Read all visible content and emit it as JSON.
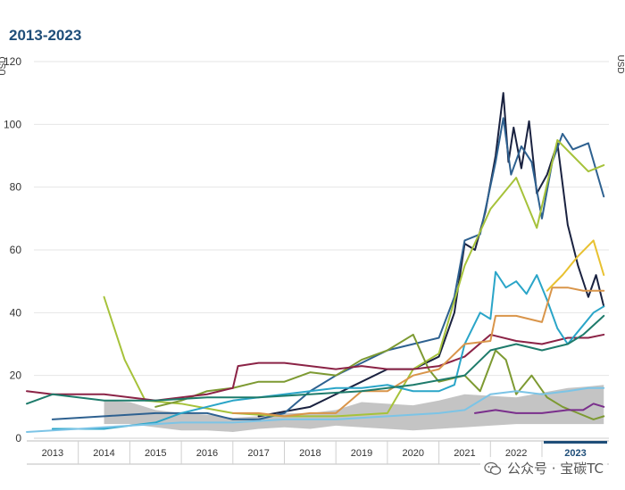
{
  "chart_data": {
    "type": "line",
    "title": "2013-2023",
    "ylabel_left": "USD",
    "ylabel_right": "USD",
    "ylim": [
      0,
      120
    ],
    "yticks": [
      0,
      20,
      40,
      60,
      80,
      100,
      120
    ],
    "xlim": [
      2012.5,
      2023.8
    ],
    "year_labels": [
      "2013",
      "2014",
      "2015",
      "2016",
      "2017",
      "2018",
      "2019",
      "2020",
      "2021",
      "2022",
      "2023"
    ],
    "highlight_year": "2023",
    "band": {
      "name": "range",
      "color": "#c4c4c4",
      "x": [
        2014.0,
        2014.5,
        2015.0,
        2015.5,
        2016.0,
        2016.5,
        2017.0,
        2017.5,
        2018.0,
        2018.5,
        2019.0,
        2019.5,
        2020.0,
        2020.5,
        2021.0,
        2021.5,
        2022.0,
        2022.5,
        2023.0,
        2023.4,
        2023.7
      ],
      "lower": [
        4.5,
        4.5,
        3.5,
        2.5,
        2.5,
        2.0,
        3.0,
        3.5,
        3.0,
        4.0,
        3.5,
        3.0,
        2.5,
        3.0,
        3.5,
        4.0,
        4.5,
        4.5,
        4.5,
        4.5,
        4.5
      ],
      "upper": [
        12.0,
        11.5,
        9.0,
        8.0,
        7.5,
        6.5,
        7.0,
        8.0,
        8.0,
        9.0,
        11.5,
        11.0,
        10.5,
        12.0,
        14.0,
        13.5,
        13.0,
        14.5,
        16.0,
        16.5,
        17.0
      ]
    },
    "series": [
      {
        "name": "navy",
        "color": "#1a2240",
        "x": [
          2017.0,
          2018.0,
          2019.0,
          2019.5,
          2020.0,
          2020.5,
          2020.8,
          2021.0,
          2021.2,
          2021.4,
          2021.6,
          2021.75,
          2021.85,
          2021.95,
          2022.1,
          2022.25,
          2022.4,
          2022.6,
          2022.8,
          2023.0,
          2023.2,
          2023.4,
          2023.55,
          2023.7
        ],
        "y": [
          7,
          10,
          18,
          22,
          22,
          26,
          40,
          62,
          60,
          72,
          90,
          110,
          88,
          99,
          86,
          101,
          78,
          84,
          94,
          68,
          55,
          45,
          52,
          42
        ]
      },
      {
        "name": "steel blue",
        "color": "#2e6190",
        "x": [
          2013.0,
          2014.0,
          2015.0,
          2016.0,
          2016.5,
          2017.0,
          2017.5,
          2018.0,
          2018.5,
          2019.0,
          2019.5,
          2020.0,
          2020.5,
          2020.8,
          2021.0,
          2021.3,
          2021.6,
          2021.75,
          2021.9,
          2022.1,
          2022.3,
          2022.5,
          2022.7,
          2022.9,
          2023.1,
          2023.4,
          2023.7
        ],
        "y": [
          6,
          7,
          8,
          8,
          6,
          6,
          8,
          15,
          20,
          24,
          28,
          30,
          32,
          45,
          63,
          65,
          88,
          102,
          84,
          93,
          88,
          70,
          88,
          97,
          92,
          94,
          77
        ]
      },
      {
        "name": "lime",
        "color": "#a6c23a",
        "x": [
          2014.0,
          2014.4,
          2014.8,
          2015.5,
          2016.5,
          2017.5,
          2018.5,
          2019.5,
          2020.0,
          2020.5,
          2021.0,
          2021.5,
          2022.0,
          2022.4,
          2022.8,
          2023.1,
          2023.4,
          2023.7
        ],
        "y": [
          45,
          25,
          12,
          11,
          8,
          7,
          7,
          8,
          22,
          27,
          55,
          73,
          83,
          67,
          95,
          90,
          85,
          87
        ]
      },
      {
        "name": "olive green",
        "color": "#7d9a32",
        "x": [
          2015.0,
          2015.5,
          2016.0,
          2016.5,
          2017.0,
          2017.5,
          2018.0,
          2018.5,
          2019.0,
          2019.5,
          2020.0,
          2020.3,
          2020.5,
          2021.0,
          2021.3,
          2021.6,
          2021.8,
          2022.0,
          2022.3,
          2022.6,
          2022.9,
          2023.2,
          2023.5,
          2023.7
        ],
        "y": [
          10,
          12,
          15,
          16,
          18,
          18,
          21,
          20,
          25,
          28,
          33,
          22,
          18,
          20,
          15,
          28,
          25,
          14,
          20,
          13,
          10,
          8,
          6,
          7
        ]
      },
      {
        "name": "crimson",
        "color": "#8b2346",
        "x": [
          2012.5,
          2013.0,
          2013.5,
          2014.0,
          2014.5,
          2015.0,
          2015.5,
          2016.0,
          2016.5,
          2016.6,
          2017.0,
          2017.5,
          2018.0,
          2018.5,
          2019.0,
          2019.5,
          2020.0,
          2020.5,
          2021.0,
          2021.5,
          2022.0,
          2022.5,
          2023.0,
          2023.4,
          2023.7
        ],
        "y": [
          15,
          14,
          14,
          14,
          13,
          12,
          13,
          14,
          16,
          23,
          24,
          24,
          23,
          22,
          23,
          22,
          22,
          23,
          26,
          33,
          31,
          30,
          32,
          32,
          33
        ]
      },
      {
        "name": "cyan",
        "color": "#2aa5c8",
        "x": [
          2013.0,
          2014.0,
          2015.0,
          2015.5,
          2016.0,
          2016.5,
          2017.0,
          2017.5,
          2018.0,
          2018.5,
          2019.0,
          2019.5,
          2020.0,
          2020.5,
          2020.8,
          2021.0,
          2021.3,
          2021.5,
          2021.6,
          2021.8,
          2022.0,
          2022.2,
          2022.4,
          2022.6,
          2022.8,
          2023.0,
          2023.2,
          2023.5,
          2023.7
        ],
        "y": [
          3,
          3,
          5,
          8,
          10,
          12,
          13,
          14,
          15,
          16,
          16,
          17,
          15,
          15,
          17,
          30,
          40,
          38,
          53,
          48,
          50,
          46,
          52,
          44,
          35,
          30,
          34,
          40,
          42
        ]
      },
      {
        "name": "orange",
        "color": "#d9954a",
        "x": [
          2016.5,
          2017.0,
          2017.5,
          2018.0,
          2018.5,
          2019.0,
          2019.5,
          2020.0,
          2020.5,
          2021.0,
          2021.5,
          2021.6,
          2022.0,
          2022.5,
          2022.7,
          2023.0,
          2023.3,
          2023.7
        ],
        "y": [
          8,
          8,
          7,
          8,
          8,
          15,
          15,
          20,
          22,
          30,
          31,
          39,
          39,
          37,
          48,
          48,
          47,
          47
        ]
      },
      {
        "name": "yellow",
        "color": "#e8c130",
        "x": [
          2022.6,
          2022.9,
          2023.2,
          2023.5,
          2023.7
        ],
        "y": [
          47,
          52,
          58,
          63,
          52
        ]
      },
      {
        "name": "teal",
        "color": "#1e7b6b",
        "x": [
          2012.5,
          2013.0,
          2014.0,
          2015.0,
          2016.0,
          2017.0,
          2018.0,
          2019.0,
          2020.0,
          2021.0,
          2021.5,
          2022.0,
          2022.5,
          2023.0,
          2023.3,
          2023.7
        ],
        "y": [
          11,
          14,
          12,
          12,
          13,
          13,
          14,
          15,
          17,
          20,
          28,
          30,
          28,
          30,
          33,
          39
        ]
      },
      {
        "name": "light blue",
        "color": "#7cc4e6",
        "x": [
          2012.5,
          2013.5,
          2014.5,
          2015.5,
          2016.5,
          2017.5,
          2018.5,
          2019.5,
          2020.5,
          2021.0,
          2021.5,
          2022.0,
          2022.5,
          2023.0,
          2023.4,
          2023.7
        ],
        "y": [
          2,
          3,
          4,
          5,
          5,
          6,
          6,
          7,
          8,
          9,
          14,
          15,
          14,
          15,
          16,
          16
        ]
      },
      {
        "name": "purple",
        "color": "#7a2f8c",
        "x": [
          2021.2,
          2021.6,
          2022.0,
          2022.5,
          2023.0,
          2023.3,
          2023.5,
          2023.7
        ],
        "y": [
          8,
          9,
          8,
          8,
          9,
          9,
          11,
          10
        ]
      }
    ]
  },
  "watermark": {
    "text": "公众号 · 宝碳TC"
  }
}
